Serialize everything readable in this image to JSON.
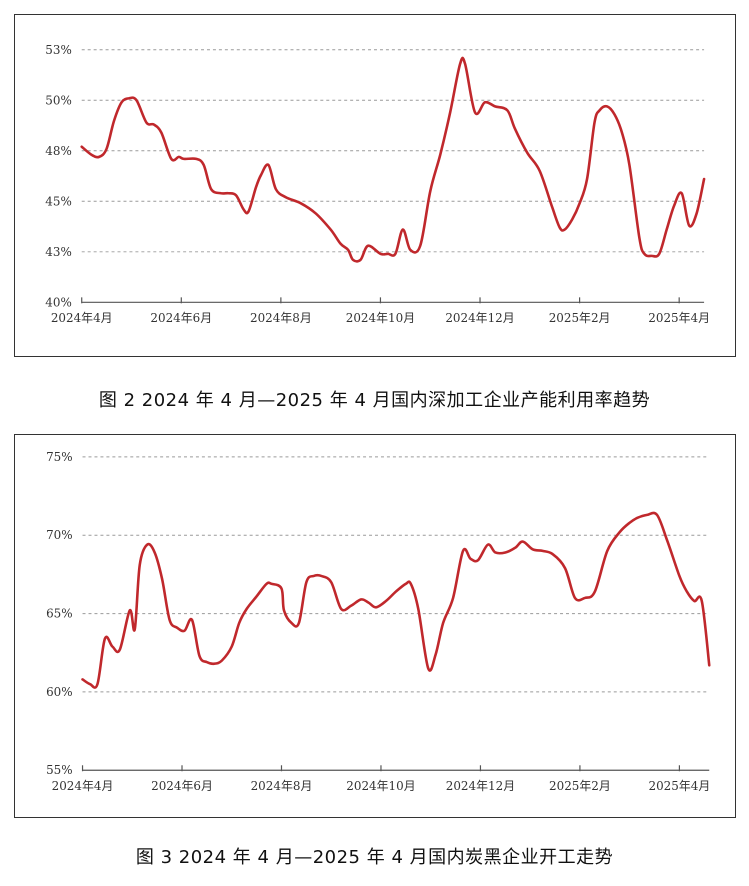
{
  "chart_data": [
    {
      "type": "line",
      "caption": "图 2  2024 年 4 月—2025 年 4 月国内深加工企业产能利用率趋势",
      "y_ticks": [
        "40%",
        "43%",
        "45%",
        "48%",
        "50%",
        "53%"
      ],
      "y_tick_values": [
        40,
        42.5,
        45,
        47.5,
        50,
        52.5
      ],
      "ylim": [
        40,
        52.5
      ],
      "x_ticks": [
        "2024年4月",
        "2024年6月",
        "2024年8月",
        "2024年10月",
        "2024年12月",
        "2025年2月",
        "2025年4月"
      ],
      "x_tick_positions": [
        0,
        2,
        4,
        6,
        8,
        10,
        12
      ],
      "xlim": [
        0,
        12.5
      ],
      "grid": true,
      "line_color": "#c0282c",
      "series": [
        {
          "x": [
            0,
            0.2,
            0.35,
            0.5,
            0.65,
            0.8,
            0.95,
            1.1,
            1.3,
            1.45,
            1.6,
            1.8,
            1.95,
            2.05,
            2.3,
            2.45,
            2.6,
            2.8,
            2.95,
            3.1,
            3.25,
            3.35,
            3.5,
            3.6,
            3.75,
            3.9,
            4.1,
            4.4,
            4.7,
            5.0,
            5.2,
            5.35,
            5.45,
            5.6,
            5.75,
            6.0,
            6.15,
            6.3,
            6.45,
            6.6,
            6.8,
            7.0,
            7.2,
            7.4,
            7.6,
            7.7,
            7.9,
            8.1,
            8.3,
            8.55,
            8.7,
            8.95,
            9.2,
            9.45,
            9.6,
            9.7,
            9.85,
            10.0,
            10.15,
            10.3,
            10.4,
            10.55,
            10.7,
            10.85,
            11.0,
            11.2,
            11.3,
            11.45,
            11.6,
            11.75,
            11.9,
            12.05,
            12.2,
            12.35,
            12.5
          ],
          "y": [
            47.7,
            47.3,
            47.2,
            47.6,
            49.0,
            49.9,
            50.1,
            50.0,
            48.9,
            48.8,
            48.4,
            47.1,
            47.2,
            47.1,
            47.1,
            46.8,
            45.6,
            45.4,
            45.4,
            45.3,
            44.6,
            44.5,
            45.7,
            46.3,
            46.8,
            45.6,
            45.2,
            44.9,
            44.4,
            43.6,
            42.9,
            42.6,
            42.1,
            42.1,
            42.8,
            42.4,
            42.4,
            42.4,
            43.6,
            42.6,
            42.8,
            45.5,
            47.3,
            49.4,
            51.8,
            51.8,
            49.4,
            49.9,
            49.7,
            49.5,
            48.6,
            47.4,
            46.5,
            44.7,
            43.7,
            43.6,
            44.1,
            44.9,
            46.1,
            48.9,
            49.5,
            49.7,
            49.3,
            48.4,
            46.8,
            43.2,
            42.4,
            42.3,
            42.4,
            43.6,
            44.8,
            45.4,
            43.8,
            44.4,
            46.1
          ]
        }
      ]
    },
    {
      "type": "line",
      "caption": "图 3  2024 年 4 月—2025 年 4 月国内炭黑企业开工走势",
      "y_ticks": [
        "55%",
        "60%",
        "65%",
        "70%",
        "75%"
      ],
      "y_tick_values": [
        55,
        60,
        65,
        70,
        75
      ],
      "ylim": [
        55,
        75
      ],
      "x_ticks": [
        "2024年4月",
        "2024年6月",
        "2024年8月",
        "2024年10月",
        "2024年12月",
        "2025年2月",
        "2025年4月"
      ],
      "x_tick_positions": [
        0,
        2,
        4,
        6,
        8,
        10,
        12
      ],
      "xlim": [
        0,
        12.6
      ],
      "grid": true,
      "line_color": "#c0282c",
      "series": [
        {
          "x": [
            0,
            0.15,
            0.3,
            0.45,
            0.6,
            0.75,
            0.95,
            1.05,
            1.15,
            1.3,
            1.45,
            1.6,
            1.75,
            1.9,
            2.05,
            2.2,
            2.35,
            2.5,
            2.65,
            2.8,
            3.0,
            3.15,
            3.3,
            3.5,
            3.7,
            3.8,
            4.0,
            4.05,
            4.2,
            4.35,
            4.5,
            4.65,
            4.8,
            5.0,
            5.2,
            5.4,
            5.6,
            5.75,
            5.9,
            6.1,
            6.3,
            6.5,
            6.6,
            6.75,
            6.95,
            7.1,
            7.25,
            7.45,
            7.65,
            7.8,
            7.95,
            8.15,
            8.3,
            8.5,
            8.7,
            8.85,
            9.05,
            9.25,
            9.45,
            9.7,
            9.9,
            10.1,
            10.3,
            10.55,
            10.8,
            11.0,
            11.15,
            11.35,
            11.55,
            11.75,
            12.0,
            12.15,
            12.3,
            12.45,
            12.6
          ],
          "y": [
            60.8,
            60.5,
            60.5,
            63.4,
            62.9,
            62.7,
            65.2,
            64.0,
            68.1,
            69.4,
            68.9,
            67.2,
            64.6,
            64.1,
            63.9,
            64.6,
            62.3,
            61.9,
            61.8,
            62.0,
            62.9,
            64.4,
            65.3,
            66.1,
            66.9,
            66.9,
            66.6,
            65.2,
            64.4,
            64.4,
            67.0,
            67.4,
            67.4,
            67.0,
            65.3,
            65.5,
            65.9,
            65.7,
            65.4,
            65.8,
            66.4,
            66.9,
            66.9,
            65.3,
            61.5,
            62.4,
            64.4,
            66.0,
            69.0,
            68.5,
            68.4,
            69.4,
            68.9,
            68.9,
            69.2,
            69.6,
            69.1,
            69.0,
            68.8,
            67.9,
            66.0,
            66.0,
            66.4,
            69.0,
            70.2,
            70.8,
            71.1,
            71.3,
            71.3,
            69.7,
            67.4,
            66.4,
            65.8,
            65.8,
            61.7
          ]
        }
      ]
    }
  ]
}
